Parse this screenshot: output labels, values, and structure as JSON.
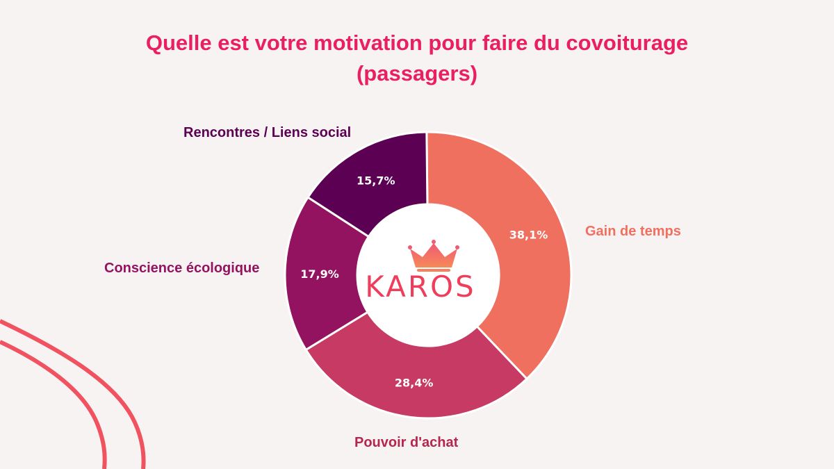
{
  "title_line1": "Quelle est votre motivation pour faire du covoiturage",
  "title_line2": "(passagers)",
  "logo": {
    "text": "KAROS",
    "color": "#ef3e5c"
  },
  "colors": {
    "background": "#f8f3f3",
    "title": "#e91e63",
    "decor_curve": "#f0525f"
  },
  "chart_data": {
    "type": "pie",
    "variant": "donut",
    "title": "Quelle est votre motivation pour faire du covoiturage (passagers)",
    "slices": [
      {
        "label": "Gain de temps",
        "value": 38.1,
        "display": "38,1%",
        "color": "#f07060",
        "label_color": "#f07060"
      },
      {
        "label": "Pouvoir d'achat",
        "value": 28.4,
        "display": "28,4%",
        "color": "#c63a63",
        "label_color": "#b5264f"
      },
      {
        "label": "Conscience écologique",
        "value": 17.9,
        "display": "17,9%",
        "color": "#941360",
        "label_color": "#941360"
      },
      {
        "label": "Rencontres / Liens social",
        "value": 15.7,
        "display": "15,7%",
        "color": "#5c0054",
        "label_color": "#5c0054"
      }
    ],
    "unit": "%",
    "legend": "none"
  }
}
